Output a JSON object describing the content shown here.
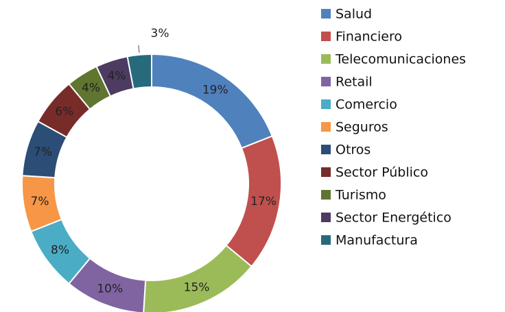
{
  "chart_data": {
    "type": "donut",
    "categories": [
      "Salud",
      "Financiero",
      "Telecomunicaciones",
      "Retail",
      "Comercio",
      "Seguros",
      "Otros",
      "Sector Público",
      "Turismo",
      "Sector Energético",
      "Manufactura"
    ],
    "values": [
      19,
      17,
      15,
      10,
      8,
      7,
      7,
      6,
      4,
      4,
      3
    ],
    "value_labels": [
      "19%",
      "17%",
      "15%",
      "10%",
      "8%",
      "7%",
      "7%",
      "6%",
      "4%",
      "4%",
      "3%"
    ],
    "colors": [
      "#4f81bd",
      "#c0504d",
      "#9bbb59",
      "#8064a2",
      "#4bacc6",
      "#f79646",
      "#2c4d75",
      "#772c2a",
      "#5f7530",
      "#4d3b62",
      "#276a7c"
    ],
    "legend": "right"
  }
}
